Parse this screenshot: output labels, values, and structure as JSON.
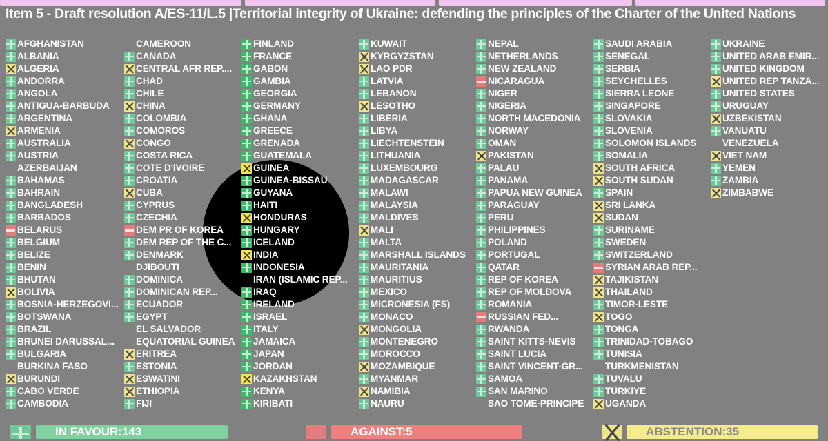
{
  "title": "Item 5 - Draft resolution A/ES-11/L.5 |Territorial integrity of Ukraine: defending the principles of the Charter of the United Nations",
  "colors": {
    "yes": "#6fc79a",
    "no": "#e57c7c",
    "abstain": "#ece38c",
    "background": "#818181",
    "header": "#f2c4f0"
  },
  "legend": {
    "Y": "plus-icon (in favour)",
    "N": "minus-icon (against)",
    "A": "x-icon (abstention)",
    "X": "no vote"
  },
  "columns": [
    [
      [
        "AFGHANISTAN",
        "Y"
      ],
      [
        "ALBANIA",
        "Y"
      ],
      [
        "ALGERIA",
        "A"
      ],
      [
        "ANDORRA",
        "Y"
      ],
      [
        "ANGOLA",
        "Y"
      ],
      [
        "ANTIGUA-BARBUDA",
        "Y"
      ],
      [
        "ARGENTINA",
        "Y"
      ],
      [
        "ARMENIA",
        "A"
      ],
      [
        "AUSTRALIA",
        "Y"
      ],
      [
        "AUSTRIA",
        "Y"
      ],
      [
        "AZERBAIJAN",
        "X"
      ],
      [
        "BAHAMAS",
        "Y"
      ],
      [
        "BAHRAIN",
        "Y"
      ],
      [
        "BANGLADESH",
        "Y"
      ],
      [
        "BARBADOS",
        "Y"
      ],
      [
        "BELARUS",
        "N"
      ],
      [
        "BELGIUM",
        "Y"
      ],
      [
        "BELIZE",
        "Y"
      ],
      [
        "BENIN",
        "Y"
      ],
      [
        "BHUTAN",
        "Y"
      ],
      [
        "BOLIVIA",
        "A"
      ],
      [
        "BOSNIA-HERZEGOVI...",
        "Y"
      ],
      [
        "BOTSWANA",
        "Y"
      ],
      [
        "BRAZIL",
        "Y"
      ],
      [
        "BRUNEI DARUSSAL...",
        "Y"
      ],
      [
        "BULGARIA",
        "Y"
      ],
      [
        "BURKINA FASO",
        "X"
      ],
      [
        "BURUNDI",
        "A"
      ],
      [
        "CABO VERDE",
        "Y"
      ],
      [
        "CAMBODIA",
        "Y"
      ]
    ],
    [
      [
        "CAMEROON",
        "X"
      ],
      [
        "CANADA",
        "Y"
      ],
      [
        "CENTRAL AFR REP....",
        "A"
      ],
      [
        "CHAD",
        "Y"
      ],
      [
        "CHILE",
        "Y"
      ],
      [
        "CHINA",
        "A"
      ],
      [
        "COLOMBIA",
        "Y"
      ],
      [
        "COMOROS",
        "Y"
      ],
      [
        "CONGO",
        "A"
      ],
      [
        "COSTA RICA",
        "Y"
      ],
      [
        "COTE D'IVOIRE",
        "Y"
      ],
      [
        "CROATIA",
        "Y"
      ],
      [
        "CUBA",
        "A"
      ],
      [
        "CYPRUS",
        "Y"
      ],
      [
        "CZECHIA",
        "Y"
      ],
      [
        "DEM PR OF KOREA",
        "N"
      ],
      [
        "DEM REP OF THE C...",
        "Y"
      ],
      [
        "DENMARK",
        "Y"
      ],
      [
        "DJIBOUTI",
        "X"
      ],
      [
        "DOMINICA",
        "Y"
      ],
      [
        "DOMINICAN REP...",
        "Y"
      ],
      [
        "ECUADOR",
        "Y"
      ],
      [
        "EGYPT",
        "Y"
      ],
      [
        "EL SALVADOR",
        "X"
      ],
      [
        "EQUATORIAL GUINEA",
        "X"
      ],
      [
        "ERITREA",
        "A"
      ],
      [
        "ESTONIA",
        "Y"
      ],
      [
        "ESWATINI",
        "A"
      ],
      [
        "ETHIOPIA",
        "A"
      ],
      [
        "FIJI",
        "Y"
      ]
    ],
    [
      [
        "FINLAND",
        "Y"
      ],
      [
        "FRANCE",
        "Y"
      ],
      [
        "GABON",
        "Y"
      ],
      [
        "GAMBIA",
        "Y"
      ],
      [
        "GEORGIA",
        "Y"
      ],
      [
        "GERMANY",
        "Y"
      ],
      [
        "GHANA",
        "Y"
      ],
      [
        "GREECE",
        "Y"
      ],
      [
        "GRENADA",
        "Y"
      ],
      [
        "GUATEMALA",
        "Y"
      ],
      [
        "GUINEA",
        "A"
      ],
      [
        "GUINEA-BISSAU",
        "Y"
      ],
      [
        "GUYANA",
        "Y"
      ],
      [
        "HAITI",
        "Y"
      ],
      [
        "HONDURAS",
        "A"
      ],
      [
        "HUNGARY",
        "Y"
      ],
      [
        "ICELAND",
        "Y"
      ],
      [
        "INDIA",
        "A"
      ],
      [
        "INDONESIA",
        "Y"
      ],
      [
        "IRAN (ISLAMIC REP...",
        "X"
      ],
      [
        "IRAQ",
        "Y"
      ],
      [
        "IRELAND",
        "Y"
      ],
      [
        "ISRAEL",
        "Y"
      ],
      [
        "ITALY",
        "Y"
      ],
      [
        "JAMAICA",
        "Y"
      ],
      [
        "JAPAN",
        "Y"
      ],
      [
        "JORDAN",
        "Y"
      ],
      [
        "KAZAKHSTAN",
        "A"
      ],
      [
        "KENYA",
        "Y"
      ],
      [
        "KIRIBATI",
        "Y"
      ]
    ],
    [
      [
        "KUWAIT",
        "Y"
      ],
      [
        "KYRGYZSTAN",
        "A"
      ],
      [
        "LAO PDR",
        "A"
      ],
      [
        "LATVIA",
        "Y"
      ],
      [
        "LEBANON",
        "Y"
      ],
      [
        "LESOTHO",
        "A"
      ],
      [
        "LIBERIA",
        "Y"
      ],
      [
        "LIBYA",
        "Y"
      ],
      [
        "LIECHTENSTEIN",
        "Y"
      ],
      [
        "LITHUANIA",
        "Y"
      ],
      [
        "LUXEMBOURG",
        "Y"
      ],
      [
        "MADAGASCAR",
        "Y"
      ],
      [
        "MALAWI",
        "Y"
      ],
      [
        "MALAYSIA",
        "Y"
      ],
      [
        "MALDIVES",
        "Y"
      ],
      [
        "MALI",
        "A"
      ],
      [
        "MALTA",
        "Y"
      ],
      [
        "MARSHALL ISLANDS",
        "Y"
      ],
      [
        "MAURITANIA",
        "Y"
      ],
      [
        "MAURITIUS",
        "Y"
      ],
      [
        "MEXICO",
        "Y"
      ],
      [
        "MICRONESIA (FS)",
        "Y"
      ],
      [
        "MONACO",
        "Y"
      ],
      [
        "MONGOLIA",
        "A"
      ],
      [
        "MONTENEGRO",
        "Y"
      ],
      [
        "MOROCCO",
        "Y"
      ],
      [
        "MOZAMBIQUE",
        "A"
      ],
      [
        "MYANMAR",
        "Y"
      ],
      [
        "NAMIBIA",
        "A"
      ],
      [
        "NAURU",
        "Y"
      ]
    ],
    [
      [
        "NEPAL",
        "Y"
      ],
      [
        "NETHERLANDS",
        "Y"
      ],
      [
        "NEW ZEALAND",
        "Y"
      ],
      [
        "NICARAGUA",
        "N"
      ],
      [
        "NIGER",
        "Y"
      ],
      [
        "NIGERIA",
        "Y"
      ],
      [
        "NORTH MACEDONIA",
        "Y"
      ],
      [
        "NORWAY",
        "Y"
      ],
      [
        "OMAN",
        "Y"
      ],
      [
        "PAKISTAN",
        "A"
      ],
      [
        "PALAU",
        "Y"
      ],
      [
        "PANAMA",
        "Y"
      ],
      [
        "PAPUA NEW GUINEA",
        "Y"
      ],
      [
        "PARAGUAY",
        "Y"
      ],
      [
        "PERU",
        "Y"
      ],
      [
        "PHILIPPINES",
        "Y"
      ],
      [
        "POLAND",
        "Y"
      ],
      [
        "PORTUGAL",
        "Y"
      ],
      [
        "QATAR",
        "Y"
      ],
      [
        "REP OF KOREA",
        "Y"
      ],
      [
        "REP OF MOLDOVA",
        "Y"
      ],
      [
        "ROMANIA",
        "Y"
      ],
      [
        "RUSSIAN FED...",
        "N"
      ],
      [
        "RWANDA",
        "Y"
      ],
      [
        "SAINT KITTS-NEVIS",
        "Y"
      ],
      [
        "SAINT LUCIA",
        "Y"
      ],
      [
        "SAINT VINCENT-GR...",
        "Y"
      ],
      [
        "SAMOA",
        "Y"
      ],
      [
        "SAN MARINO",
        "Y"
      ],
      [
        "SAO TOME-PRINCIPE",
        "X"
      ]
    ],
    [
      [
        "SAUDI ARABIA",
        "Y"
      ],
      [
        "SENEGAL",
        "Y"
      ],
      [
        "SERBIA",
        "Y"
      ],
      [
        "SEYCHELLES",
        "Y"
      ],
      [
        "SIERRA LEONE",
        "Y"
      ],
      [
        "SINGAPORE",
        "Y"
      ],
      [
        "SLOVAKIA",
        "Y"
      ],
      [
        "SLOVENIA",
        "Y"
      ],
      [
        "SOLOMON ISLANDS",
        "Y"
      ],
      [
        "SOMALIA",
        "Y"
      ],
      [
        "SOUTH AFRICA",
        "A"
      ],
      [
        "SOUTH SUDAN",
        "A"
      ],
      [
        "SPAIN",
        "Y"
      ],
      [
        "SRI LANKA",
        "A"
      ],
      [
        "SUDAN",
        "A"
      ],
      [
        "SURINAME",
        "Y"
      ],
      [
        "SWEDEN",
        "Y"
      ],
      [
        "SWITZERLAND",
        "Y"
      ],
      [
        "SYRIAN ARAB REP...",
        "N"
      ],
      [
        "TAJIKISTAN",
        "A"
      ],
      [
        "THAILAND",
        "A"
      ],
      [
        "TIMOR-LESTE",
        "Y"
      ],
      [
        "TOGO",
        "A"
      ],
      [
        "TONGA",
        "Y"
      ],
      [
        "TRINIDAD-TOBAGO",
        "Y"
      ],
      [
        "TUNISIA",
        "Y"
      ],
      [
        "TURKMENISTAN",
        "X"
      ],
      [
        "TUVALU",
        "Y"
      ],
      [
        "TÜRKIYE",
        "Y"
      ],
      [
        "UGANDA",
        "A"
      ]
    ],
    [
      [
        "UKRAINE",
        "Y"
      ],
      [
        "UNITED ARAB EMIR...",
        "Y"
      ],
      [
        "UNITED KINGDOM",
        "Y"
      ],
      [
        "UNITED REP TANZA...",
        "A"
      ],
      [
        "UNITED STATES",
        "Y"
      ],
      [
        "URUGUAY",
        "Y"
      ],
      [
        "UZBEKISTAN",
        "A"
      ],
      [
        "VANUATU",
        "Y"
      ],
      [
        "VENEZUELA",
        "X"
      ],
      [
        "VIET NAM",
        "A"
      ],
      [
        "YEMEN",
        "Y"
      ],
      [
        "ZAMBIA",
        "Y"
      ],
      [
        "ZIMBABWE",
        "A"
      ]
    ]
  ],
  "totals": {
    "in_favour": "IN FAVOUR:143",
    "against": "AGAINST:5",
    "abstention": "ABSTENTION:35"
  }
}
